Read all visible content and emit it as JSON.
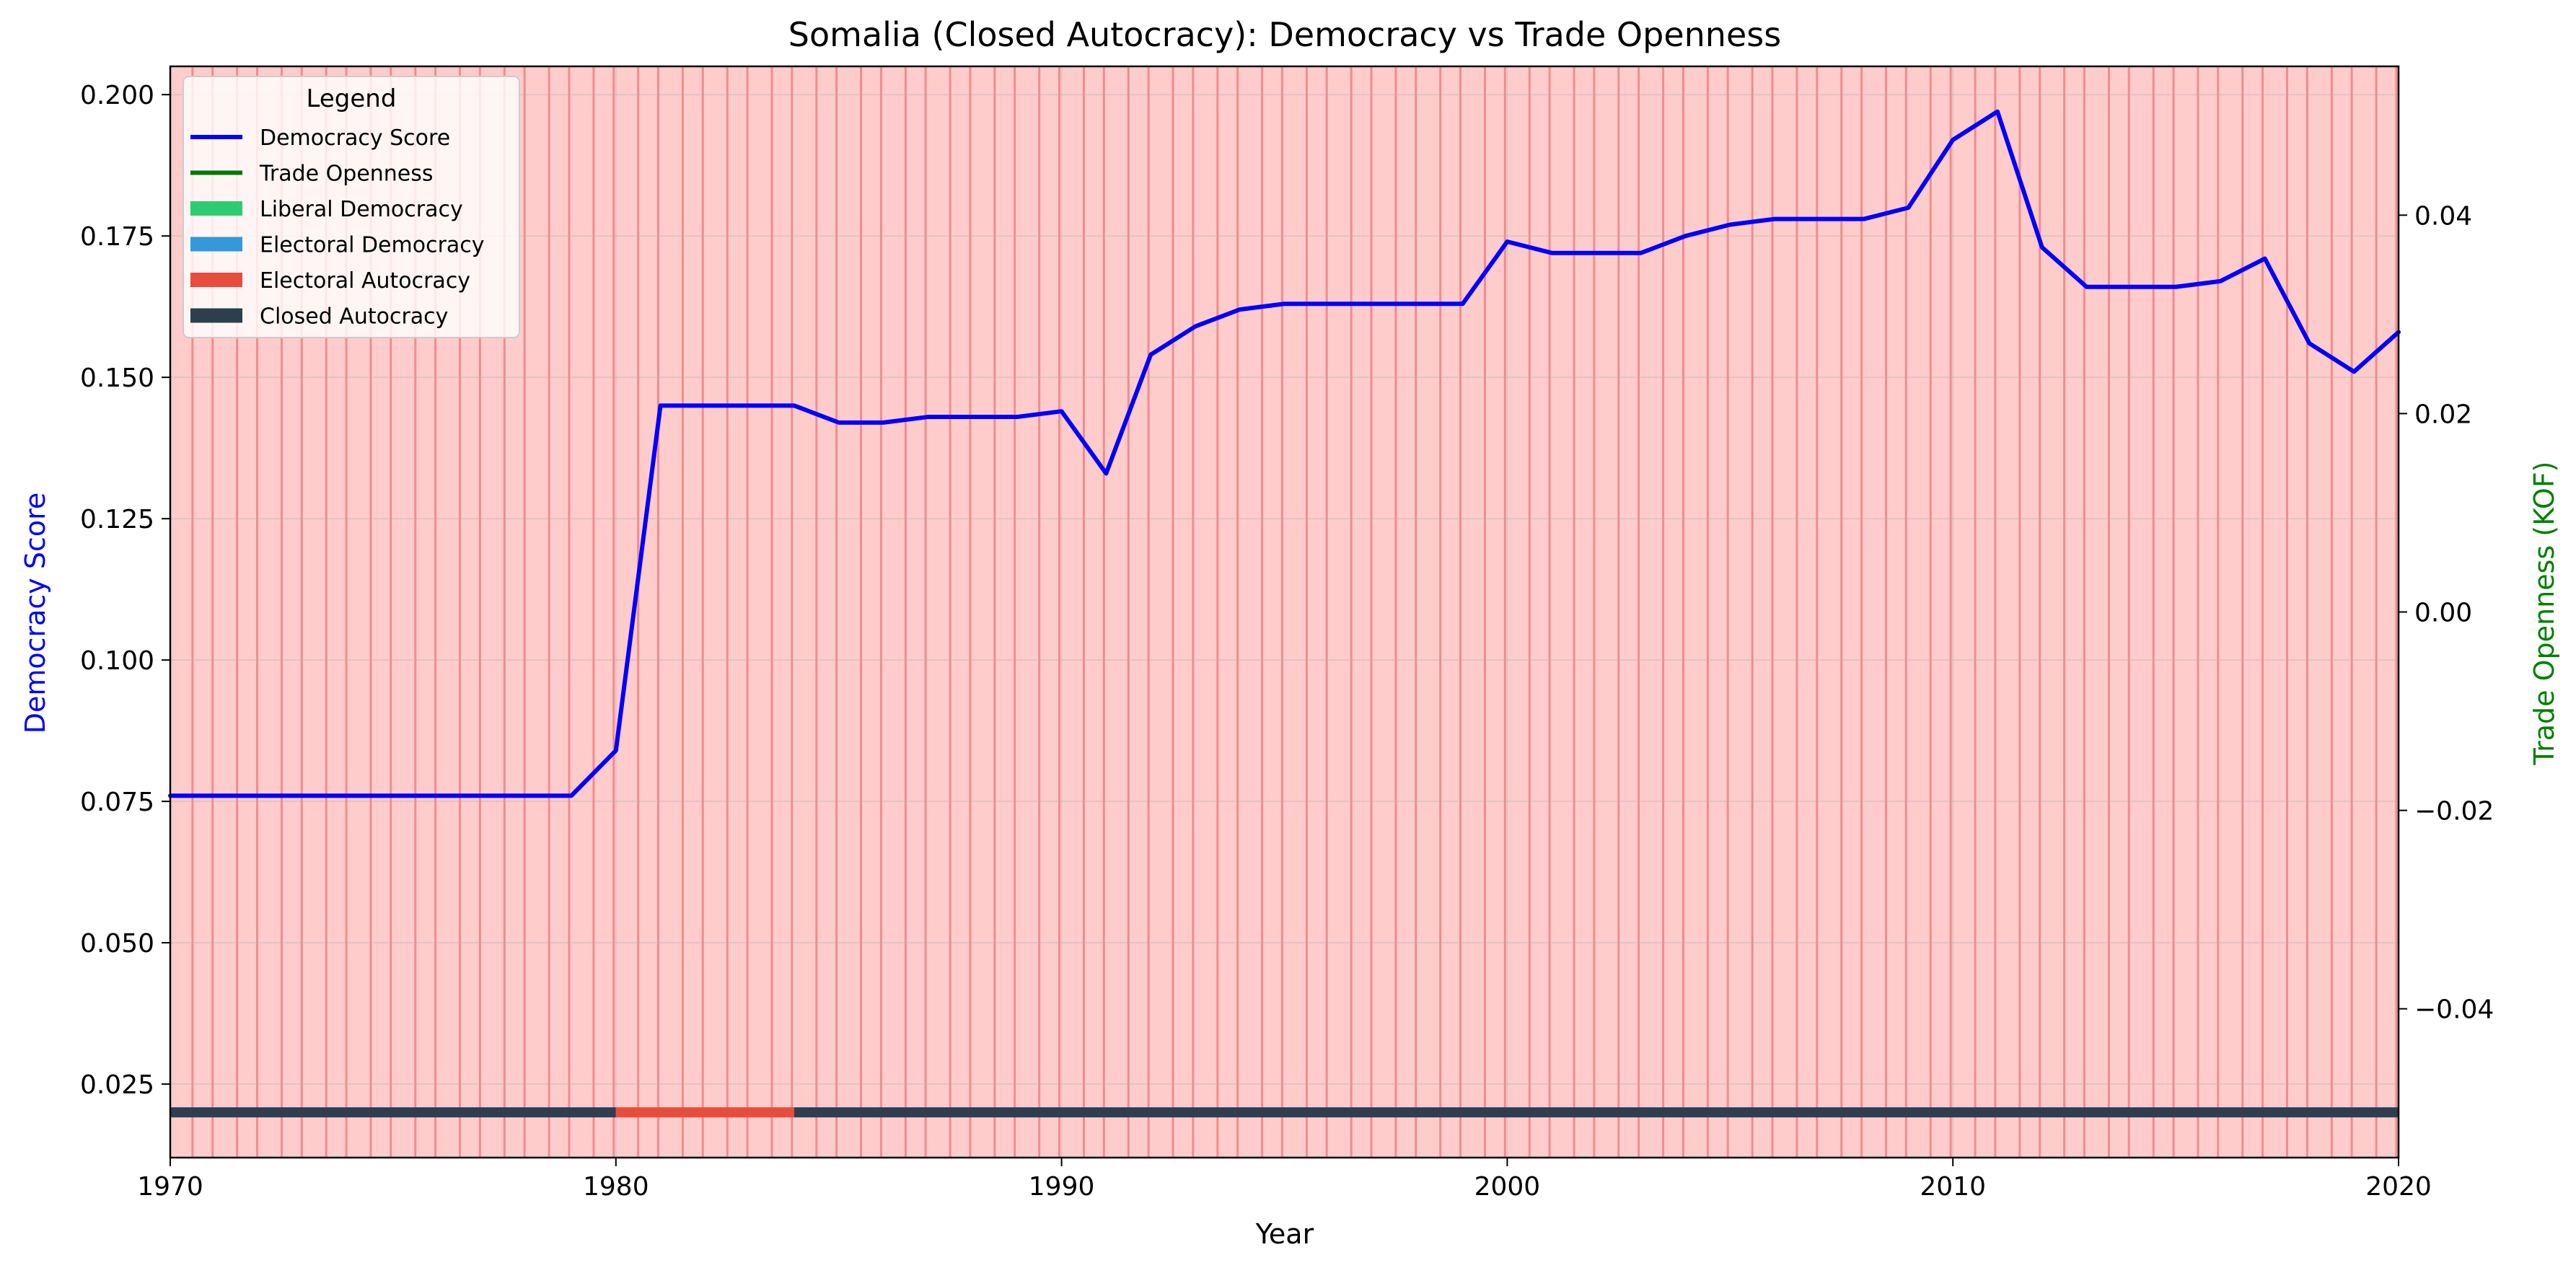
{
  "chart_data": {
    "type": "line",
    "title": "Somalia (Closed Autocracy): Democracy vs Trade Openness",
    "xlabel": "Year",
    "ylabel": "Democracy Score",
    "y2label": "Trade Openness (KOF)",
    "xlim": [
      1970,
      2020
    ],
    "ylim": [
      0.012,
      0.205
    ],
    "y2lim": [
      -0.055,
      0.055
    ],
    "xticks": [
      1970,
      1980,
      1990,
      2000,
      2010,
      2020
    ],
    "xtick_labels": [
      "1970",
      "1980",
      "1990",
      "2000",
      "2010",
      "2020"
    ],
    "yticks": [
      0.025,
      0.05,
      0.075,
      0.1,
      0.125,
      0.15,
      0.175,
      0.2
    ],
    "ytick_labels": [
      "0.025",
      "0.050",
      "0.075",
      "0.100",
      "0.125",
      "0.150",
      "0.175",
      "0.200"
    ],
    "y2ticks": [
      -0.04,
      -0.02,
      0.0,
      0.02,
      0.04
    ],
    "y2tick_labels": [
      "−0.04",
      "−0.02",
      "0.00",
      "0.02",
      "0.04"
    ],
    "grid": true,
    "legend_position": "top-left",
    "legend": {
      "title": "Legend",
      "entries": [
        {
          "label": "Democracy Score",
          "kind": "line",
          "color": "#0000ff"
        },
        {
          "label": "Trade Openness",
          "kind": "line",
          "color": "#007800"
        },
        {
          "label": "Liberal Democracy",
          "kind": "patch",
          "color": "#2ecc71"
        },
        {
          "label": "Electoral Democracy",
          "kind": "patch",
          "color": "#3498db"
        },
        {
          "label": "Electoral Autocracy",
          "kind": "patch",
          "color": "#e74c3c"
        },
        {
          "label": "Closed Autocracy",
          "kind": "patch",
          "color": "#2c3e50"
        }
      ]
    },
    "background_color": "#ffcccc",
    "year_band_line_color": "#f08080",
    "series": [
      {
        "name": "Democracy Score",
        "color": "#0000ff",
        "x": [
          1970,
          1971,
          1972,
          1973,
          1974,
          1975,
          1976,
          1977,
          1978,
          1979,
          1980,
          1981,
          1982,
          1983,
          1984,
          1985,
          1986,
          1987,
          1988,
          1989,
          1990,
          1991,
          1992,
          1993,
          1994,
          1995,
          1996,
          1997,
          1998,
          1999,
          2000,
          2001,
          2002,
          2003,
          2004,
          2005,
          2006,
          2007,
          2008,
          2009,
          2010,
          2011,
          2012,
          2013,
          2014,
          2015,
          2016,
          2017,
          2018,
          2019,
          2020
        ],
        "values": [
          0.076,
          0.076,
          0.076,
          0.076,
          0.076,
          0.076,
          0.076,
          0.076,
          0.076,
          0.076,
          0.084,
          0.145,
          0.145,
          0.145,
          0.145,
          0.142,
          0.142,
          0.143,
          0.143,
          0.143,
          0.144,
          0.133,
          0.154,
          0.159,
          0.162,
          0.163,
          0.163,
          0.163,
          0.163,
          0.163,
          0.174,
          0.172,
          0.172,
          0.172,
          0.175,
          0.177,
          0.178,
          0.178,
          0.178,
          0.18,
          0.192,
          0.197,
          0.173,
          0.166,
          0.166,
          0.166,
          0.167,
          0.171,
          0.156,
          0.151,
          0.158
        ]
      }
    ],
    "regime_strip": {
      "y_value": 0.02,
      "segments": [
        {
          "start": 1970,
          "end": 1980,
          "regime": "Closed Autocracy",
          "color": "#2c3e50"
        },
        {
          "start": 1980,
          "end": 1984,
          "regime": "Electoral Autocracy",
          "color": "#e74c3c"
        },
        {
          "start": 1984,
          "end": 2020,
          "regime": "Closed Autocracy",
          "color": "#2c3e50"
        }
      ]
    }
  }
}
